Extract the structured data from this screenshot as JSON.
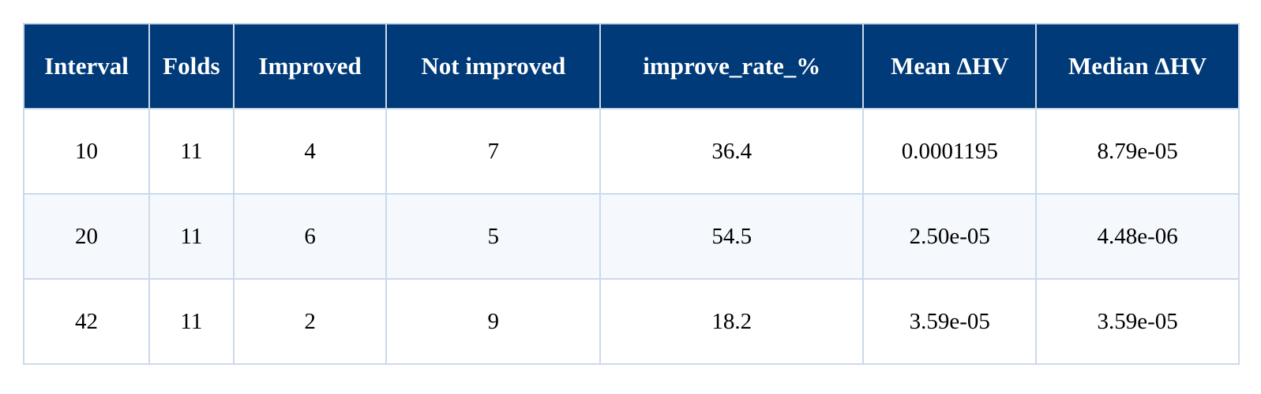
{
  "chart_data": {
    "type": "table",
    "columns": [
      "Interval",
      "Folds",
      "Improved",
      "Not improved",
      "improve_rate_%",
      "Mean ΔHV",
      "Median ΔHV"
    ],
    "rows": [
      [
        "10",
        "11",
        "4",
        "7",
        "36.4",
        "0.0001195",
        "8.79e-05"
      ],
      [
        "20",
        "11",
        "6",
        "5",
        "54.5",
        "2.50e-05",
        "4.48e-06"
      ],
      [
        "42",
        "11",
        "2",
        "9",
        "18.2",
        "3.59e-05",
        "3.59e-05"
      ]
    ]
  },
  "colors": {
    "header_background": "#003a78",
    "header_text": "#ffffff",
    "border": "#ccd9ea",
    "alt_row_background": "#f5f9fe"
  }
}
